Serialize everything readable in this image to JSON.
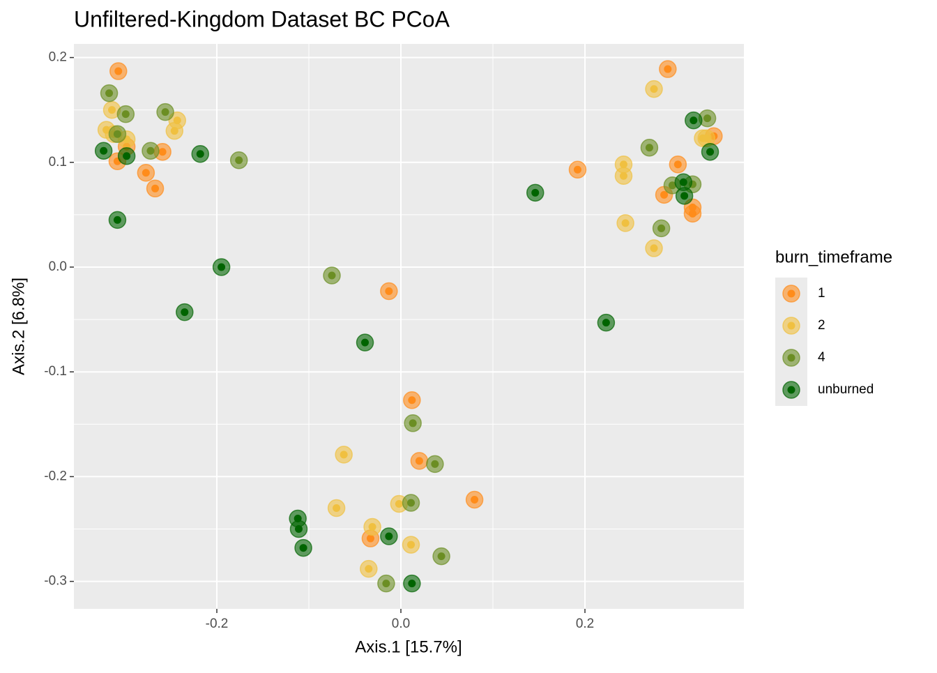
{
  "chart_data": {
    "type": "scatter",
    "title": "Unfiltered-Kingdom Dataset BC PCoA",
    "x_label": "Axis.1   [15.7%]",
    "y_label": "Axis.2   [6.8%]",
    "legend_title": "burn_timeframe",
    "legend_position": "right",
    "grid": true,
    "xlim": [
      -0.3553,
      0.3727
    ],
    "ylim": [
      -0.3262,
      0.213
    ],
    "xticks": [
      -0.2,
      {
        "value": 0,
        "label": "0.0"
      },
      0.2
    ],
    "yticks": [
      -0.3,
      -0.2,
      -0.1,
      {
        "value": 0,
        "label": "0.0"
      },
      0.1,
      0.2
    ],
    "series": [
      {
        "name": "1",
        "color": "#ff8c1a",
        "x": [
          -0.307,
          -0.308,
          -0.298,
          -0.259,
          -0.277,
          -0.267,
          0.29,
          0.301,
          0.34,
          0.192,
          0.286,
          0.317,
          0.317,
          -0.013,
          0.012,
          0.02,
          0.08,
          -0.033
        ],
        "values": [
          0.187,
          0.101,
          0.115,
          0.11,
          0.09,
          0.075,
          0.189,
          0.098,
          0.125,
          0.093,
          0.069,
          0.057,
          0.051,
          -0.023,
          -0.127,
          -0.185,
          -0.222,
          -0.259
        ]
      },
      {
        "name": "2",
        "color": "#f0c040",
        "x": [
          -0.314,
          -0.32,
          -0.312,
          -0.298,
          -0.243,
          -0.246,
          0.275,
          0.242,
          0.242,
          0.244,
          0.275,
          0.328,
          0.332,
          -0.062,
          -0.07,
          -0.031,
          -0.002,
          0.011,
          -0.035
        ],
        "values": [
          0.15,
          0.131,
          0.127,
          0.122,
          0.14,
          0.13,
          0.17,
          0.098,
          0.087,
          0.042,
          0.018,
          0.123,
          0.123,
          -0.179,
          -0.23,
          -0.248,
          -0.226,
          -0.265,
          -0.288
        ]
      },
      {
        "name": "4",
        "color": "#6b8e23",
        "x": [
          -0.317,
          -0.299,
          -0.256,
          -0.272,
          -0.176,
          -0.308,
          0.333,
          0.27,
          0.295,
          0.317,
          0.283,
          -0.075,
          0.013,
          0.037,
          0.011,
          0.044,
          -0.016
        ],
        "values": [
          0.166,
          0.146,
          0.148,
          0.111,
          0.102,
          0.127,
          0.142,
          0.114,
          0.078,
          0.079,
          0.037,
          -0.008,
          -0.149,
          -0.188,
          -0.225,
          -0.276,
          -0.302
        ]
      },
      {
        "name": "unburned",
        "color": "#006400",
        "x": [
          -0.323,
          -0.298,
          -0.218,
          -0.308,
          -0.195,
          -0.235,
          0.146,
          0.318,
          0.336,
          0.307,
          0.308,
          0.223,
          -0.039,
          -0.112,
          -0.111,
          -0.106,
          -0.013,
          0.012
        ],
        "values": [
          0.111,
          0.106,
          0.108,
          0.045,
          0.0,
          -0.043,
          0.071,
          0.14,
          0.11,
          0.081,
          0.068,
          -0.053,
          -0.072,
          -0.24,
          -0.25,
          -0.268,
          -0.257,
          -0.302
        ]
      }
    ]
  }
}
